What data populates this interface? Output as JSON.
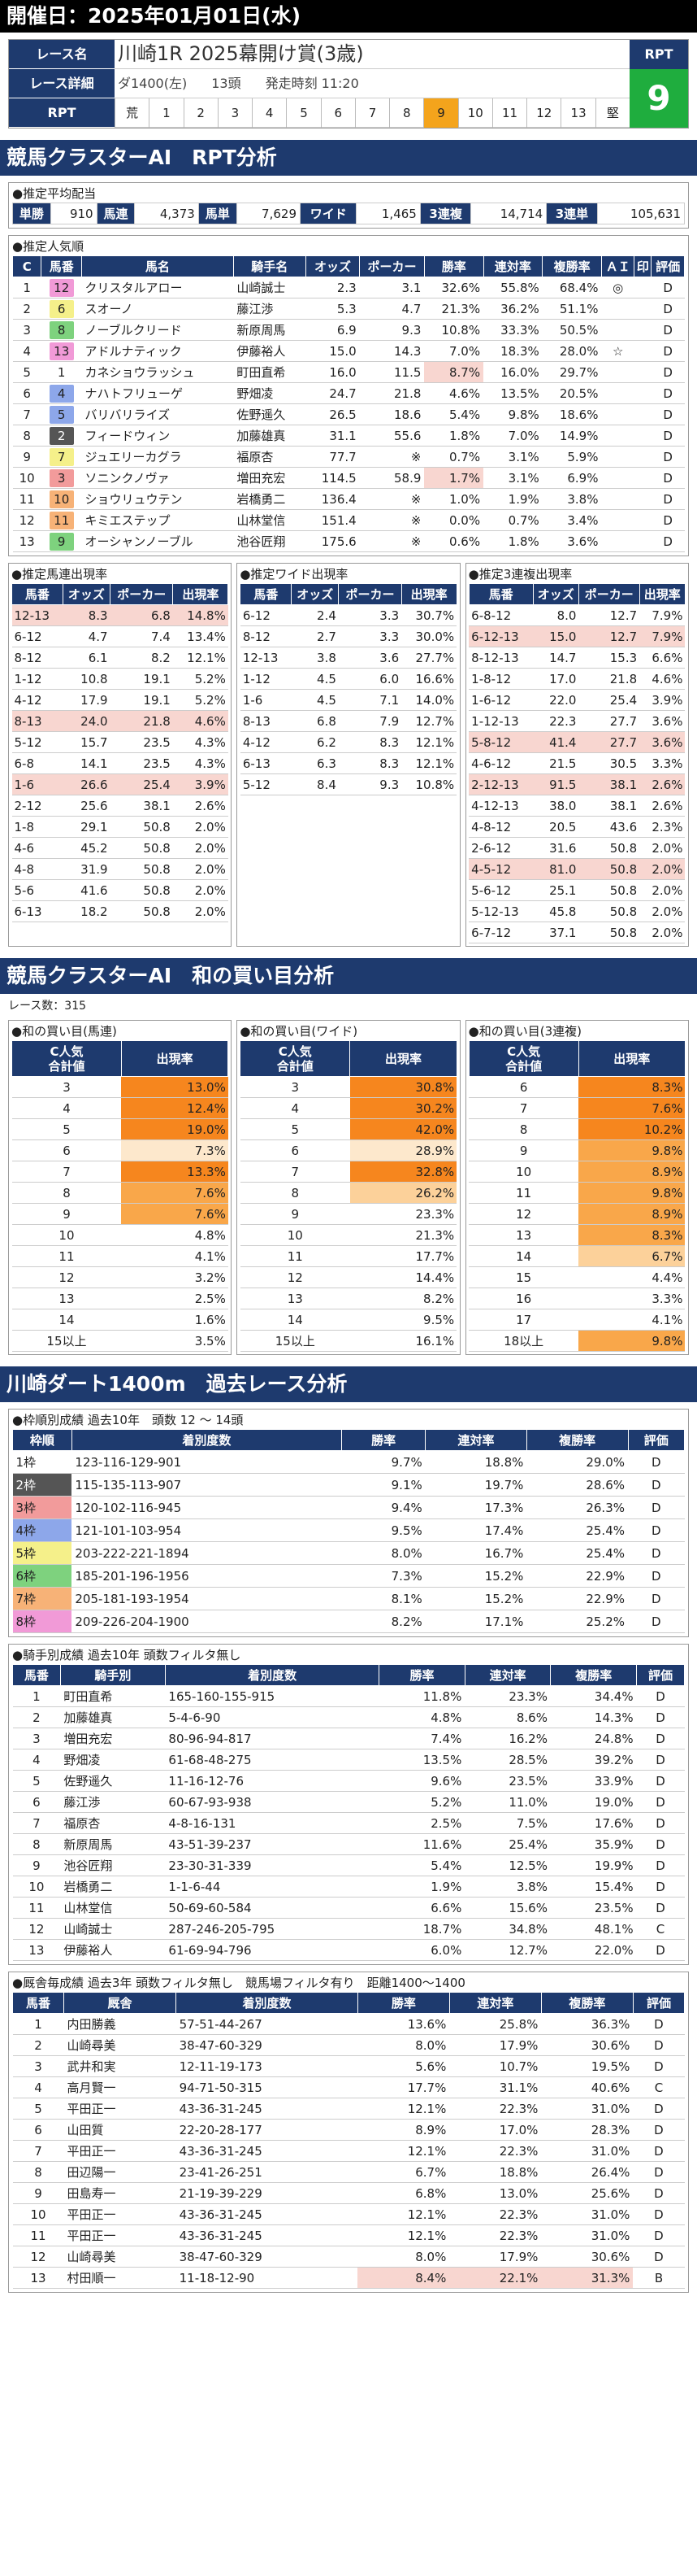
{
  "top": {
    "title": "開催日：2025年01月01日(水)"
  },
  "header": {
    "labels": [
      "レース名",
      "レース詳細",
      "RPT"
    ],
    "race_name": "川崎1R 2025幕開け賞(3歳)",
    "course": "ダ1400(左)",
    "heads": "13頭",
    "start": "発走時刻 11:20",
    "rpt_scale": [
      "荒",
      "1",
      "2",
      "3",
      "4",
      "5",
      "6",
      "7",
      "8",
      "9",
      "10",
      "11",
      "12",
      "13",
      "堅"
    ],
    "rpt_active": 9,
    "rpt_label": "RPT",
    "rpt_value": "9"
  },
  "sec1": {
    "title": "競馬クラスターAI　RPT分析"
  },
  "avg": {
    "title": "●推定平均配当",
    "items": [
      [
        "単勝",
        "910"
      ],
      [
        "馬連",
        "4,373"
      ],
      [
        "馬単",
        "7,629"
      ],
      [
        "ワイド",
        "1,465"
      ],
      [
        "3連複",
        "14,714"
      ],
      [
        "3連単",
        "105,631"
      ]
    ]
  },
  "pop": {
    "title": "●推定人気順",
    "headers": [
      "C",
      "馬番",
      "馬名",
      "騎手名",
      "オッズ",
      "ポーカー",
      "勝率",
      "連対率",
      "複勝率",
      "ＡＩ",
      "印",
      "評価"
    ],
    "rows": [
      [
        "1",
        "12",
        "クリスタルアロー",
        "山崎誠士",
        "2.3",
        "3.1",
        "32.6%",
        "55.8%",
        "68.4%",
        "◎",
        "",
        "D"
      ],
      [
        "2",
        "6",
        "スオーノ",
        "藤江渉",
        "5.3",
        "4.7",
        "21.3%",
        "36.2%",
        "51.1%",
        "",
        "",
        "D"
      ],
      [
        "3",
        "8",
        "ノーブルクリード",
        "新原周馬",
        "6.9",
        "9.3",
        "10.8%",
        "33.3%",
        "50.5%",
        "",
        "",
        "D"
      ],
      [
        "4",
        "13",
        "アドルナティック",
        "伊藤裕人",
        "15.0",
        "14.3",
        "7.0%",
        "18.3%",
        "28.0%",
        "☆",
        "",
        "D"
      ],
      [
        "5",
        "1",
        "カネショウラッシュ",
        "町田直希",
        "16.0",
        "11.5",
        "8.7%",
        "16.0%",
        "29.7%",
        "",
        "",
        "D"
      ],
      [
        "6",
        "4",
        "ナハトフリューゲ",
        "野畑凌",
        "24.7",
        "21.8",
        "4.6%",
        "13.5%",
        "20.5%",
        "",
        "",
        "D"
      ],
      [
        "7",
        "5",
        "バリバリライズ",
        "佐野遥久",
        "26.5",
        "18.6",
        "5.4%",
        "9.8%",
        "18.6%",
        "",
        "",
        "D"
      ],
      [
        "8",
        "2",
        "フィードウィン",
        "加藤雄真",
        "31.1",
        "55.6",
        "1.8%",
        "7.0%",
        "14.9%",
        "",
        "",
        "D"
      ],
      [
        "9",
        "7",
        "ジュエリーカグラ",
        "福原杏",
        "77.7",
        "※",
        "0.7%",
        "3.1%",
        "5.9%",
        "",
        "",
        "D"
      ],
      [
        "10",
        "3",
        "ソニンクノヴァ",
        "増田充宏",
        "114.5",
        "58.9",
        "1.7%",
        "3.1%",
        "6.9%",
        "",
        "",
        "D"
      ],
      [
        "11",
        "10",
        "ショウリュウテン",
        "岩橋勇二",
        "136.4",
        "※",
        "1.0%",
        "1.9%",
        "3.8%",
        "",
        "",
        "D"
      ],
      [
        "12",
        "11",
        "キミエステップ",
        "山林堂信",
        "151.4",
        "※",
        "0.0%",
        "0.7%",
        "3.4%",
        "",
        "",
        "D"
      ],
      [
        "13",
        "9",
        "オーシャンノーブル",
        "池谷匠翔",
        "175.6",
        "※",
        "0.6%",
        "1.8%",
        "3.6%",
        "",
        "",
        "D"
      ]
    ]
  },
  "umaren": {
    "title": "●推定馬連出現率",
    "headers": [
      "馬番",
      "オッズ",
      "ポーカー",
      "出現率"
    ],
    "rows": [
      [
        "12-13",
        "8.3",
        "6.8",
        "14.8%"
      ],
      [
        "6-12",
        "4.7",
        "7.4",
        "13.4%"
      ],
      [
        "8-12",
        "6.1",
        "8.2",
        "12.1%"
      ],
      [
        "1-12",
        "10.8",
        "19.1",
        "5.2%"
      ],
      [
        "4-12",
        "17.9",
        "19.1",
        "5.2%"
      ],
      [
        "8-13",
        "24.0",
        "21.8",
        "4.6%"
      ],
      [
        "5-12",
        "15.7",
        "23.5",
        "4.3%"
      ],
      [
        "6-8",
        "14.1",
        "23.5",
        "4.3%"
      ],
      [
        "1-6",
        "26.6",
        "25.4",
        "3.9%"
      ],
      [
        "2-12",
        "25.6",
        "38.1",
        "2.6%"
      ],
      [
        "1-8",
        "29.1",
        "50.8",
        "2.0%"
      ],
      [
        "4-6",
        "45.2",
        "50.8",
        "2.0%"
      ],
      [
        "4-8",
        "31.9",
        "50.8",
        "2.0%"
      ],
      [
        "5-6",
        "41.6",
        "50.8",
        "2.0%"
      ],
      [
        "6-13",
        "18.2",
        "50.8",
        "2.0%"
      ]
    ],
    "hl": [
      0,
      5,
      8
    ]
  },
  "wide": {
    "title": "●推定ワイド出現率",
    "headers": [
      "馬番",
      "オッズ",
      "ポーカー",
      "出現率"
    ],
    "rows": [
      [
        "6-12",
        "2.4",
        "3.3",
        "30.7%"
      ],
      [
        "8-12",
        "2.7",
        "3.3",
        "30.0%"
      ],
      [
        "12-13",
        "3.8",
        "3.6",
        "27.7%"
      ],
      [
        "1-12",
        "4.5",
        "6.0",
        "16.6%"
      ],
      [
        "1-6",
        "4.5",
        "7.1",
        "14.0%"
      ],
      [
        "8-13",
        "6.8",
        "7.9",
        "12.7%"
      ],
      [
        "4-12",
        "6.2",
        "8.3",
        "12.1%"
      ],
      [
        "6-13",
        "6.3",
        "8.3",
        "12.1%"
      ],
      [
        "5-12",
        "8.4",
        "9.3",
        "10.8%"
      ]
    ],
    "hl": []
  },
  "trio": {
    "title": "●推定3連複出現率",
    "headers": [
      "馬番",
      "オッズ",
      "ポーカー",
      "出現率"
    ],
    "rows": [
      [
        "6-8-12",
        "8.0",
        "12.7",
        "7.9%"
      ],
      [
        "6-12-13",
        "15.0",
        "12.7",
        "7.9%"
      ],
      [
        "8-12-13",
        "14.7",
        "15.3",
        "6.6%"
      ],
      [
        "1-8-12",
        "17.0",
        "21.8",
        "4.6%"
      ],
      [
        "1-6-12",
        "22.0",
        "25.4",
        "3.9%"
      ],
      [
        "1-12-13",
        "22.3",
        "27.7",
        "3.6%"
      ],
      [
        "5-8-12",
        "41.4",
        "27.7",
        "3.6%"
      ],
      [
        "4-6-12",
        "21.5",
        "30.5",
        "3.3%"
      ],
      [
        "2-12-13",
        "91.5",
        "38.1",
        "2.6%"
      ],
      [
        "4-12-13",
        "38.0",
        "38.1",
        "2.6%"
      ],
      [
        "4-8-12",
        "20.5",
        "43.6",
        "2.3%"
      ],
      [
        "2-6-12",
        "31.6",
        "50.8",
        "2.0%"
      ],
      [
        "4-5-12",
        "81.0",
        "50.8",
        "2.0%"
      ],
      [
        "5-6-12",
        "25.1",
        "50.8",
        "2.0%"
      ],
      [
        "5-12-13",
        "45.8",
        "50.8",
        "2.0%"
      ],
      [
        "6-7-12",
        "37.1",
        "50.8",
        "2.0%"
      ]
    ],
    "hl": [
      1,
      6,
      8,
      12
    ]
  },
  "sec2": {
    "title": "競馬クラスターAI　和の買い目分析"
  },
  "count": "レース数：315",
  "sum_umaren": {
    "title": "●和の買い目(馬連)",
    "headers": [
      "C人気\n合計値",
      "出現率"
    ],
    "rows": [
      [
        "3",
        "13.0%",
        "c1"
      ],
      [
        "4",
        "12.4%",
        "c1"
      ],
      [
        "5",
        "19.0%",
        "c1"
      ],
      [
        "6",
        "7.3%",
        "c4"
      ],
      [
        "7",
        "13.3%",
        "c1"
      ],
      [
        "8",
        "7.6%",
        "c2"
      ],
      [
        "9",
        "7.6%",
        "c2"
      ],
      [
        "10",
        "4.8%",
        ""
      ],
      [
        "11",
        "4.1%",
        ""
      ],
      [
        "12",
        "3.2%",
        ""
      ],
      [
        "13",
        "2.5%",
        ""
      ],
      [
        "14",
        "1.6%",
        ""
      ],
      [
        "15以上",
        "3.5%",
        ""
      ]
    ]
  },
  "sum_wide": {
    "title": "●和の買い目(ワイド)",
    "headers": [
      "C人気\n合計値",
      "出現率"
    ],
    "rows": [
      [
        "3",
        "30.8%",
        "c1"
      ],
      [
        "4",
        "30.2%",
        "c1"
      ],
      [
        "5",
        "42.0%",
        "c1"
      ],
      [
        "6",
        "28.9%",
        "c4"
      ],
      [
        "7",
        "32.8%",
        "c1"
      ],
      [
        "8",
        "26.2%",
        "c3"
      ],
      [
        "9",
        "23.3%",
        ""
      ],
      [
        "10",
        "21.3%",
        ""
      ],
      [
        "11",
        "17.7%",
        ""
      ],
      [
        "12",
        "14.4%",
        ""
      ],
      [
        "13",
        "8.2%",
        ""
      ],
      [
        "14",
        "9.5%",
        ""
      ],
      [
        "15以上",
        "16.1%",
        ""
      ]
    ]
  },
  "sum_trio": {
    "title": "●和の買い目(3連複)",
    "headers": [
      "C人気\n合計値",
      "出現率"
    ],
    "rows": [
      [
        "6",
        "8.3%",
        "c1"
      ],
      [
        "7",
        "7.6%",
        "c1"
      ],
      [
        "8",
        "10.2%",
        "c1"
      ],
      [
        "9",
        "9.8%",
        "c2"
      ],
      [
        "10",
        "8.9%",
        "c2"
      ],
      [
        "11",
        "9.8%",
        "c2"
      ],
      [
        "12",
        "8.9%",
        "c2"
      ],
      [
        "13",
        "8.3%",
        "c2"
      ],
      [
        "14",
        "6.7%",
        "c3"
      ],
      [
        "15",
        "4.4%",
        ""
      ],
      [
        "16",
        "3.3%",
        ""
      ],
      [
        "17",
        "4.1%",
        ""
      ],
      [
        "18以上",
        "9.8%",
        "c2"
      ]
    ]
  },
  "sec3": {
    "title": "川崎ダート1400m　過去レース分析"
  },
  "waku": {
    "title": "●枠順別成績 過去10年　頭数 12 ～ 14頭",
    "headers": [
      "枠順",
      "着別度数",
      "勝率",
      "連対率",
      "複勝率",
      "評価"
    ],
    "rows": [
      [
        "1枠",
        "123-116-129-901",
        "9.7%",
        "18.8%",
        "29.0%",
        "D"
      ],
      [
        "2枠",
        "115-135-113-907",
        "9.1%",
        "19.7%",
        "28.6%",
        "D"
      ],
      [
        "3枠",
        "120-102-116-945",
        "9.4%",
        "17.3%",
        "26.3%",
        "D"
      ],
      [
        "4枠",
        "121-101-103-954",
        "9.5%",
        "17.4%",
        "25.4%",
        "D"
      ],
      [
        "5枠",
        "203-222-221-1894",
        "8.0%",
        "16.7%",
        "25.4%",
        "D"
      ],
      [
        "6枠",
        "185-201-196-1956",
        "7.3%",
        "15.2%",
        "22.9%",
        "D"
      ],
      [
        "7枠",
        "205-181-193-1954",
        "8.1%",
        "15.2%",
        "22.9%",
        "D"
      ],
      [
        "8枠",
        "209-226-204-1900",
        "8.2%",
        "17.1%",
        "25.2%",
        "D"
      ]
    ],
    "colors": [
      "#ffffff",
      "#555555",
      "#f29b9b",
      "#8da7ea",
      "#f5f08a",
      "#7ed27e",
      "#f7b277",
      "#f19ad7"
    ],
    "textcolors": [
      "#222222",
      "#ffffff",
      "#222222",
      "#222222",
      "#222222",
      "#222222",
      "#222222",
      "#222222"
    ]
  },
  "jockey": {
    "title": "●騎手別成績 過去10年 頭数フィルタ無し",
    "headers": [
      "馬番",
      "騎手別",
      "着別度数",
      "勝率",
      "連対率",
      "複勝率",
      "評価"
    ],
    "rows": [
      [
        "1",
        "町田直希",
        "165-160-155-915",
        "11.8%",
        "23.3%",
        "34.4%",
        "D"
      ],
      [
        "2",
        "加藤雄真",
        "5-4-6-90",
        "4.8%",
        "8.6%",
        "14.3%",
        "D"
      ],
      [
        "3",
        "増田充宏",
        "80-96-94-817",
        "7.4%",
        "16.2%",
        "24.8%",
        "D"
      ],
      [
        "4",
        "野畑凌",
        "61-68-48-275",
        "13.5%",
        "28.5%",
        "39.2%",
        "D"
      ],
      [
        "5",
        "佐野遥久",
        "11-16-12-76",
        "9.6%",
        "23.5%",
        "33.9%",
        "D"
      ],
      [
        "6",
        "藤江渉",
        "60-67-93-938",
        "5.2%",
        "11.0%",
        "19.0%",
        "D"
      ],
      [
        "7",
        "福原杏",
        "4-8-16-131",
        "2.5%",
        "7.5%",
        "17.6%",
        "D"
      ],
      [
        "8",
        "新原周馬",
        "43-51-39-237",
        "11.6%",
        "25.4%",
        "35.9%",
        "D"
      ],
      [
        "9",
        "池谷匠翔",
        "23-30-31-339",
        "5.4%",
        "12.5%",
        "19.9%",
        "D"
      ],
      [
        "10",
        "岩橋勇二",
        "1-1-6-44",
        "1.9%",
        "3.8%",
        "15.4%",
        "D"
      ],
      [
        "11",
        "山林堂信",
        "50-69-60-584",
        "6.6%",
        "15.6%",
        "23.5%",
        "D"
      ],
      [
        "12",
        "山崎誠士",
        "287-246-205-795",
        "18.7%",
        "34.8%",
        "48.1%",
        "C"
      ],
      [
        "13",
        "伊藤裕人",
        "61-69-94-796",
        "6.0%",
        "12.7%",
        "22.0%",
        "D"
      ]
    ]
  },
  "trainer": {
    "title": "●厩舎毎成績 過去3年 頭数フィルタ無し　競馬場フィルタ有り　距離1400～1400",
    "headers": [
      "馬番",
      "厩舎",
      "着別度数",
      "勝率",
      "連対率",
      "複勝率",
      "評価"
    ],
    "rows": [
      [
        "1",
        "内田勝義",
        "57-51-44-267",
        "13.6%",
        "25.8%",
        "36.3%",
        "D"
      ],
      [
        "2",
        "山崎尋美",
        "38-47-60-329",
        "8.0%",
        "17.9%",
        "30.6%",
        "D"
      ],
      [
        "3",
        "武井和実",
        "12-11-19-173",
        "5.6%",
        "10.7%",
        "19.5%",
        "D"
      ],
      [
        "4",
        "高月賢一",
        "94-71-50-315",
        "17.7%",
        "31.1%",
        "40.6%",
        "C"
      ],
      [
        "5",
        "平田正一",
        "43-36-31-245",
        "12.1%",
        "22.3%",
        "31.0%",
        "D"
      ],
      [
        "6",
        "山田質",
        "22-20-28-177",
        "8.9%",
        "17.0%",
        "28.3%",
        "D"
      ],
      [
        "7",
        "平田正一",
        "43-36-31-245",
        "12.1%",
        "22.3%",
        "31.0%",
        "D"
      ],
      [
        "8",
        "田辺陽一",
        "23-41-26-251",
        "6.7%",
        "18.8%",
        "26.4%",
        "D"
      ],
      [
        "9",
        "田島寿一",
        "21-19-39-229",
        "6.8%",
        "13.0%",
        "25.6%",
        "D"
      ],
      [
        "10",
        "平田正一",
        "43-36-31-245",
        "12.1%",
        "22.3%",
        "31.0%",
        "D"
      ],
      [
        "11",
        "平田正一",
        "43-36-31-245",
        "12.1%",
        "22.3%",
        "31.0%",
        "D"
      ],
      [
        "12",
        "山崎尋美",
        "38-47-60-329",
        "8.0%",
        "17.9%",
        "30.6%",
        "D"
      ],
      [
        "13",
        "村田順一",
        "11-18-12-90",
        "8.4%",
        "22.1%",
        "31.3%",
        "B"
      ]
    ],
    "hl": [
      12
    ]
  },
  "waku_colors": {
    "1": "#ffffff",
    "2": "#555555",
    "3": "#f29b9b",
    "4": "#8da7ea",
    "5": "#f5f08a",
    "6": "#7ed27e",
    "7": "#f7b277",
    "8": "#f19ad7"
  }
}
